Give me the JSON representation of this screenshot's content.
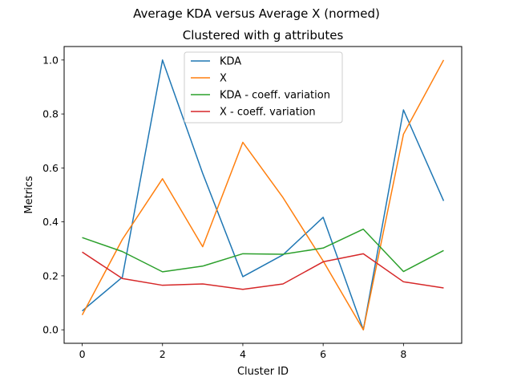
{
  "chart_data": {
    "type": "line",
    "suptitle": "Average KDA versus Average X (normed)",
    "title": "Clustered with g attributes",
    "xlabel": "Cluster ID",
    "ylabel": "Metrics",
    "xlim": [
      -0.45,
      9.45
    ],
    "ylim": [
      -0.05,
      1.05
    ],
    "xticks": [
      0,
      2,
      4,
      6,
      8
    ],
    "yticks": [
      0.0,
      0.2,
      0.4,
      0.6,
      0.8,
      1.0
    ],
    "xtick_labels": [
      "0",
      "2",
      "4",
      "6",
      "8"
    ],
    "ytick_labels": [
      "0.0",
      "0.2",
      "0.4",
      "0.6",
      "0.8",
      "1.0"
    ],
    "legend_position": "top-center",
    "grid": false,
    "x": [
      0,
      1,
      2,
      3,
      4,
      5,
      6,
      7,
      8,
      9
    ],
    "series": [
      {
        "name": "KDA",
        "color": "#1f77b4",
        "values": [
          0.07,
          0.195,
          1.0,
          0.58,
          0.197,
          0.278,
          0.417,
          0.0,
          0.815,
          0.478
        ]
      },
      {
        "name": "X",
        "color": "#ff7f0e",
        "values": [
          0.055,
          0.335,
          0.56,
          0.308,
          0.695,
          0.49,
          0.255,
          0.0,
          0.725,
          1.0
        ]
      },
      {
        "name": "KDA - coeff. variation",
        "color": "#2ca02c",
        "values": [
          0.342,
          0.29,
          0.215,
          0.236,
          0.282,
          0.28,
          0.303,
          0.373,
          0.216,
          0.294
        ]
      },
      {
        "name": "X - coeff. variation",
        "color": "#d62728",
        "values": [
          0.288,
          0.19,
          0.165,
          0.17,
          0.15,
          0.17,
          0.252,
          0.282,
          0.178,
          0.155
        ]
      }
    ]
  }
}
